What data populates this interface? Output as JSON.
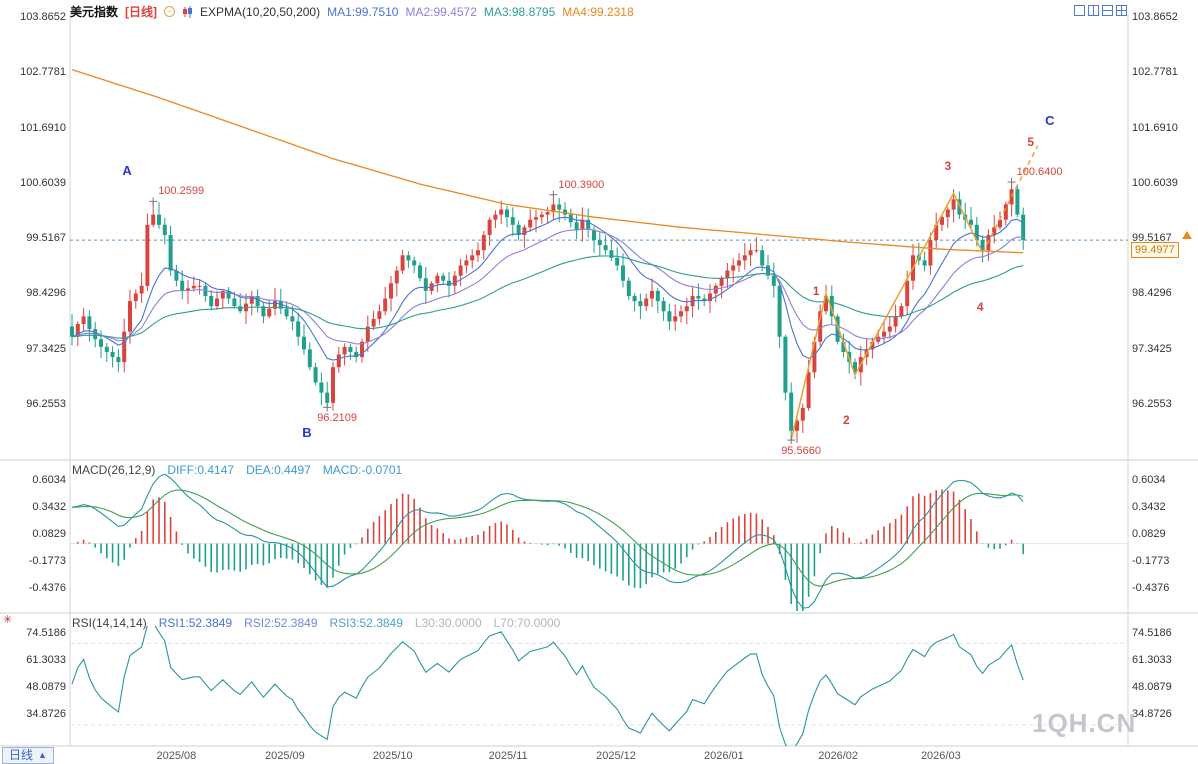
{
  "header": {
    "symbol": "美元指数",
    "period_tag": "[日线]",
    "indicator": "EXPMA(10,20,50,200)",
    "ma_values": [
      {
        "label": "MA1:99.7510",
        "color": "#4a73d2"
      },
      {
        "label": "MA2:99.4572",
        "color": "#8f7fd8"
      },
      {
        "label": "MA3:98.8795",
        "color": "#2f9e8f"
      },
      {
        "label": "MA4:99.2318",
        "color": "#e8881f"
      }
    ]
  },
  "macd_header": {
    "title": "MACD(26,12,9)",
    "diff": "DIFF:0.4147",
    "dea": "DEA:0.4497",
    "macd": "MACD:-0.0701"
  },
  "rsi_header": {
    "title": "RSI(14,14,14)",
    "rsi1": "RSI1:52.3849",
    "rsi2": "RSI2:52.3849",
    "rsi3": "RSI3:52.3849",
    "l30": "L30:30.0000",
    "l70": "L70:70.0000"
  },
  "price_tag": "99.4977",
  "watermark": "1QH.CN",
  "bottom": {
    "tab_label": "日线",
    "months": [
      {
        "label": "2025/08",
        "i": 18
      },
      {
        "label": "2025/09",
        "i": 36.7
      },
      {
        "label": "2025/10",
        "i": 55.3
      },
      {
        "label": "2025/11",
        "i": 75.2
      },
      {
        "label": "2025/12",
        "i": 93.8
      },
      {
        "label": "2026/01",
        "i": 112.4
      },
      {
        "label": "2026/02",
        "i": 132.1
      },
      {
        "label": "2026/03",
        "i": 149.8
      }
    ]
  },
  "colors": {
    "up": "#d9443f",
    "down": "#1fa08c",
    "ma1": "#4a73d2",
    "ma2": "#8f7fd8",
    "ma3": "#2f9e8f",
    "ma4": "#e8881f",
    "diff_line": "#2a95a0",
    "dea_line": "#3f9f4f",
    "rsi_line": "#2a95a0",
    "zigzag": "#f0a030",
    "dashed_line": "#4e97c6",
    "annotation": "#d9443f",
    "wave_number": "#d9443f",
    "wave_letter": "#2a35cc",
    "tag": "#e8881f"
  },
  "chart_data": {
    "type": "candlestick",
    "title": "美元指数 日线 (US Dollar Index, Daily)",
    "main": {
      "y_ticks": [
        103.8652,
        102.7781,
        101.691,
        100.6039,
        99.5167,
        98.4296,
        97.3425,
        96.2553
      ],
      "expma_periods": [
        10,
        20,
        50,
        200
      ],
      "last_price": 99.4977,
      "dashed_level": 99.4977,
      "closes": [
        97.6,
        97.85,
        98.0,
        97.75,
        97.55,
        97.4,
        97.3,
        97.2,
        97.1,
        97.7,
        98.3,
        98.45,
        98.6,
        99.8,
        100.0,
        99.8,
        99.6,
        98.9,
        98.7,
        98.5,
        98.55,
        98.6,
        98.6,
        98.4,
        98.2,
        98.35,
        98.5,
        98.35,
        98.2,
        98.1,
        98.25,
        98.4,
        98.2,
        98.0,
        98.15,
        98.3,
        98.15,
        98.0,
        97.9,
        97.6,
        97.35,
        97.0,
        96.7,
        96.5,
        96.3,
        97.0,
        97.25,
        97.4,
        97.3,
        97.2,
        97.5,
        97.8,
        97.95,
        98.1,
        98.35,
        98.65,
        98.9,
        99.2,
        99.1,
        99.0,
        98.75,
        98.5,
        98.65,
        98.8,
        98.7,
        98.6,
        98.8,
        99.0,
        99.1,
        99.2,
        99.3,
        99.6,
        99.9,
        100.0,
        100.1,
        99.95,
        99.8,
        99.6,
        99.75,
        99.9,
        99.95,
        100.0,
        100.05,
        100.2,
        100.1,
        100.0,
        99.85,
        99.7,
        99.9,
        99.7,
        99.5,
        99.4,
        99.3,
        99.15,
        99.0,
        98.7,
        98.4,
        98.3,
        98.2,
        98.35,
        98.5,
        98.3,
        98.1,
        97.9,
        98.0,
        98.1,
        98.2,
        98.4,
        98.35,
        98.3,
        98.45,
        98.6,
        98.75,
        98.9,
        99.0,
        99.1,
        99.2,
        99.3,
        99.3,
        99.0,
        98.8,
        98.6,
        97.6,
        96.5,
        95.75,
        95.95,
        96.2,
        96.9,
        97.5,
        98.1,
        98.4,
        98.0,
        97.5,
        97.3,
        97.1,
        96.9,
        97.2,
        97.35,
        97.5,
        97.6,
        97.7,
        97.8,
        98.0,
        98.2,
        98.7,
        99.2,
        99.1,
        99.0,
        99.5,
        99.8,
        99.95,
        100.1,
        100.3,
        100.0,
        99.9,
        99.8,
        99.5,
        99.3,
        99.6,
        99.75,
        99.9,
        100.2,
        100.5,
        100.0,
        99.5
      ],
      "extremes": {
        "14": {
          "high": 100.2599
        },
        "44": {
          "low": 96.2109
        },
        "83": {
          "high": 100.39
        },
        "124": {
          "low": 95.566
        },
        "162": {
          "high": 100.64
        }
      },
      "ema200_anchors": [
        [
          0,
          102.85
        ],
        [
          15,
          102.3
        ],
        [
          30,
          101.7
        ],
        [
          45,
          101.1
        ],
        [
          60,
          100.6
        ],
        [
          75,
          100.2
        ],
        [
          90,
          99.95
        ],
        [
          105,
          99.75
        ],
        [
          120,
          99.6
        ],
        [
          135,
          99.45
        ],
        [
          150,
          99.32
        ],
        [
          164,
          99.25
        ]
      ],
      "annotations": [
        {
          "text": "100.2599",
          "index": 14,
          "price": 100.2599,
          "type": "high"
        },
        {
          "text": "100.3900",
          "index": 83,
          "price": 100.39,
          "type": "high"
        },
        {
          "text": "100.6400",
          "index": 162,
          "price": 100.64,
          "type": "high"
        },
        {
          "text": "96.2109",
          "index": 44,
          "price": 96.2109,
          "type": "low"
        },
        {
          "text": "95.5660",
          "index": 124,
          "price": 95.566,
          "type": "low"
        }
      ],
      "wave_labels": [
        {
          "text": "A",
          "cls": "letter",
          "index": 9.5,
          "price": 100.85
        },
        {
          "text": "B",
          "cls": "letter",
          "index": 40.5,
          "price": 95.7
        },
        {
          "text": "C",
          "cls": "letter",
          "index": 168.6,
          "price": 101.84
        },
        {
          "text": "1",
          "cls": "num",
          "index": 128.3,
          "price": 98.48
        },
        {
          "text": "2",
          "cls": "num",
          "index": 133.5,
          "price": 95.95
        },
        {
          "text": "3",
          "cls": "num",
          "index": 151,
          "price": 100.94
        },
        {
          "text": "4",
          "cls": "num",
          "index": 156.6,
          "price": 98.17
        },
        {
          "text": "5",
          "cls": "num",
          "index": 165.3,
          "price": 101.41
        }
      ],
      "zigzag": {
        "solid": [
          [
            124,
            95.566
          ],
          [
            130,
            98.45
          ],
          [
            135,
            96.85
          ],
          [
            152,
            100.42
          ],
          [
            157,
            99.25
          ]
        ],
        "dashed": [
          [
            157,
            99.25
          ],
          [
            166.5,
            101.35
          ]
        ]
      }
    },
    "macd": {
      "params": [
        26,
        12,
        9
      ],
      "y_ticks": [
        0.6034,
        0.3432,
        0.0829,
        -0.1773,
        -0.4376
      ],
      "diff": 0.4147,
      "dea": 0.4497,
      "macd": -0.0701
    },
    "rsi": {
      "params": [
        14,
        14,
        14
      ],
      "y_ticks": [
        74.5186,
        61.3033,
        48.0879,
        34.8726
      ],
      "values": [
        52.3849,
        52.3849,
        52.3849
      ],
      "l30": 30.0,
      "l70": 70.0
    }
  }
}
